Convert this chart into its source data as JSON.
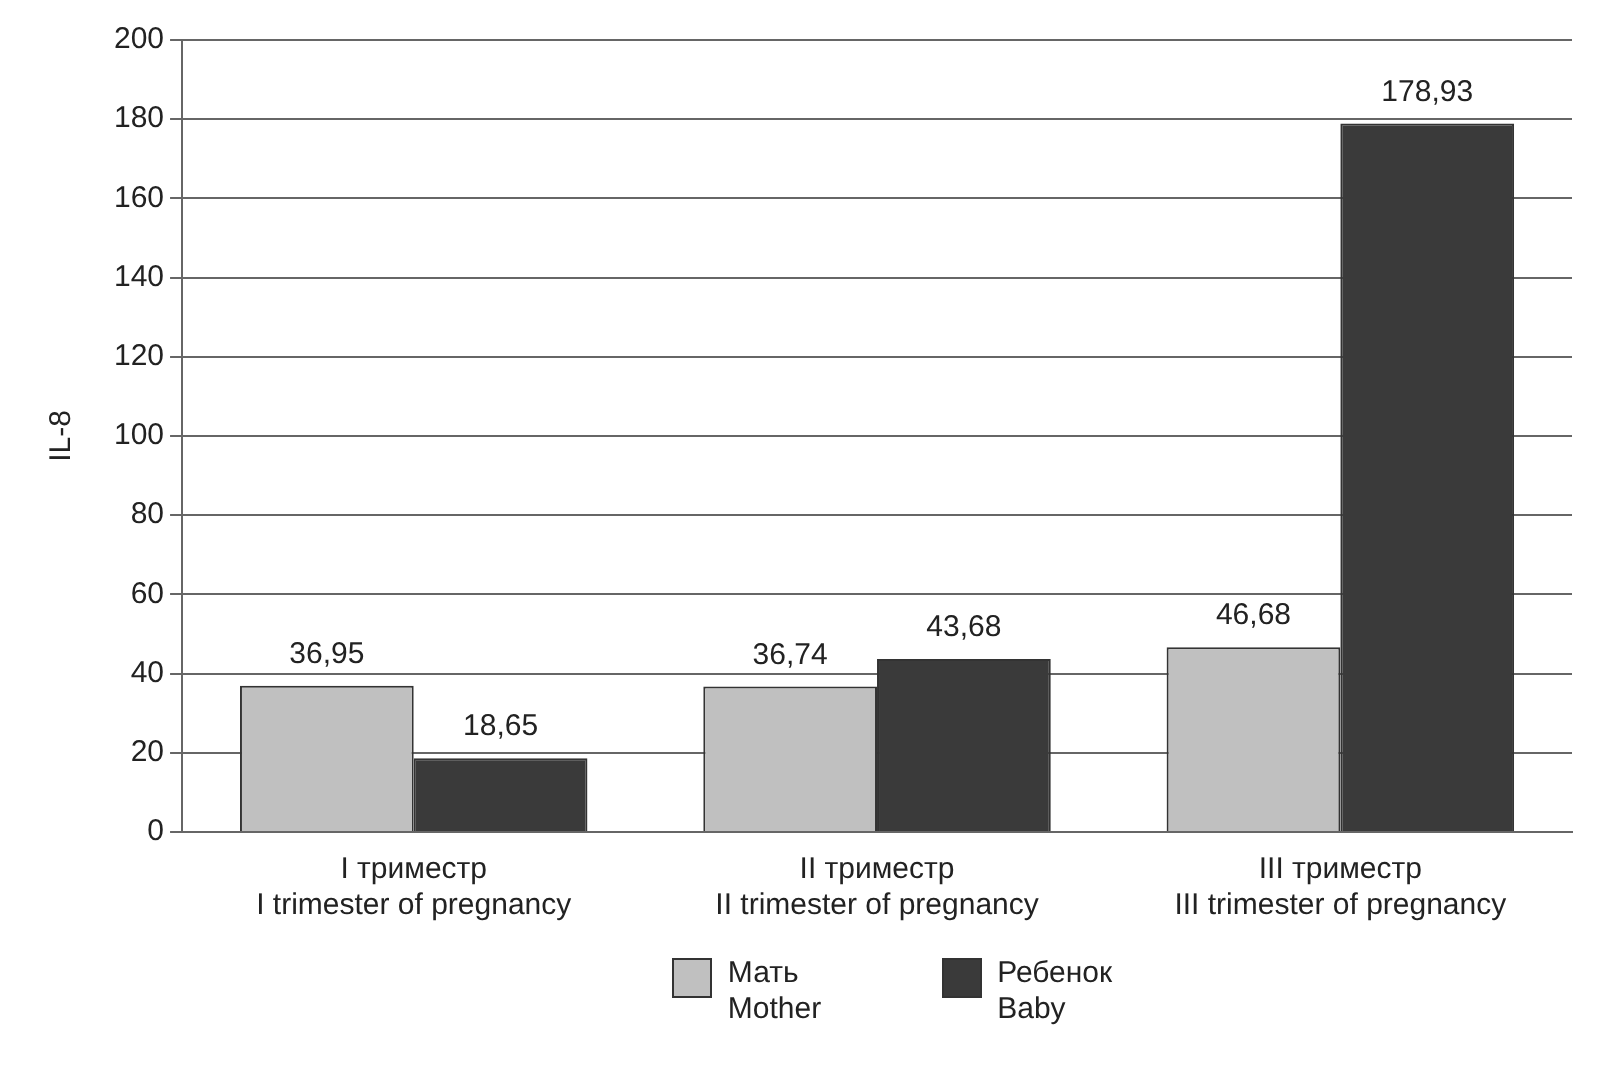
{
  "chart_data": {
    "type": "bar",
    "ylabel": "IL-8",
    "categories": [
      "I триместр\nI trimester of pregnancy",
      "II триместр\nII trimester of pregnancy",
      "III триместр\nIII trimester of pregnancy"
    ],
    "series": [
      {
        "name": "Мать\nMother",
        "color": "#c0c0c0",
        "values": [
          36.95,
          36.74,
          46.68
        ],
        "value_labels": [
          "36,95",
          "36,74",
          "46,68"
        ]
      },
      {
        "name": "Ребенок\nBaby",
        "color": "#3a3a3a",
        "values": [
          18.65,
          43.68,
          178.93
        ],
        "value_labels": [
          "18,65",
          "43,68",
          "178,93"
        ]
      }
    ],
    "ylim": [
      0,
      200
    ],
    "yticks": [
      0,
      20,
      40,
      60,
      80,
      100,
      120,
      140,
      160,
      180,
      200
    ],
    "grid": "y",
    "legend": "bottom"
  }
}
